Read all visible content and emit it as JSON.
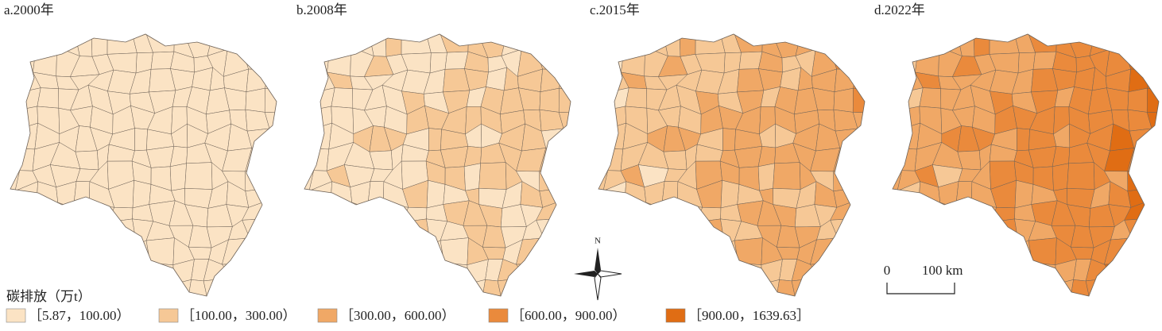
{
  "panels": [
    {
      "label": "a.2000年"
    },
    {
      "label": "b.2008年"
    },
    {
      "label": "c.2015年"
    },
    {
      "label": "d.2022年"
    }
  ],
  "legend": {
    "title": "碳排放（万t）",
    "items": [
      {
        "label": "［5.87，100.00）",
        "color": "#fbe3c4"
      },
      {
        "label": "［100.00，300.00）",
        "color": "#f6c896"
      },
      {
        "label": "［300.00，600.00）",
        "color": "#f0a866"
      },
      {
        "label": "［600.00，900.00）",
        "color": "#ea8a3c"
      },
      {
        "label": "［900.00，1639.63］",
        "color": "#e06d14"
      }
    ]
  },
  "north_arrow": {
    "label": "N"
  },
  "scale_bar": {
    "labels": [
      "0",
      "100 km"
    ]
  }
}
